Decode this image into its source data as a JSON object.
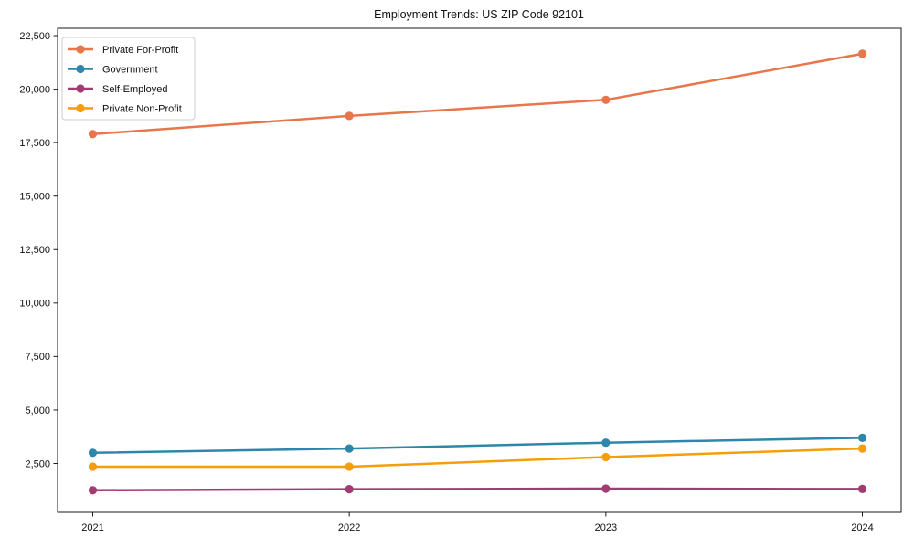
{
  "title": "Employment Trends: US ZIP Code 92101",
  "chart_data": {
    "type": "line",
    "title": "Employment Trends: US ZIP Code 92101",
    "xlabel": "",
    "ylabel": "",
    "x": [
      "2021",
      "2022",
      "2023",
      "2024"
    ],
    "series": [
      {
        "name": "Private For-Profit",
        "color": "#E8764B",
        "values": [
          17900,
          18750,
          19500,
          21650
        ]
      },
      {
        "name": "Government",
        "color": "#2E86AB",
        "values": [
          3000,
          3200,
          3475,
          3700
        ]
      },
      {
        "name": "Self-Employed",
        "color": "#A23B72",
        "values": [
          1250,
          1300,
          1325,
          1310
        ]
      },
      {
        "name": "Private Non-Profit",
        "color": "#F49E0B",
        "values": [
          2350,
          2350,
          2800,
          3200
        ]
      }
    ],
    "yticks": [
      2500,
      5000,
      7500,
      10000,
      12500,
      15000,
      17500,
      20000,
      22500
    ],
    "ytick_labels": [
      "2,500",
      "5,000",
      "7,500",
      "10,000",
      "12,500",
      "15,000",
      "17,500",
      "20,000",
      "22,500"
    ],
    "ylim": [
      190,
      22830
    ],
    "grid": false,
    "legend_position": "upper left",
    "marker": "circle",
    "spine_color": "#1a1a1a",
    "legend_border_color": "#cccccc",
    "background_color": "#ffffff"
  }
}
